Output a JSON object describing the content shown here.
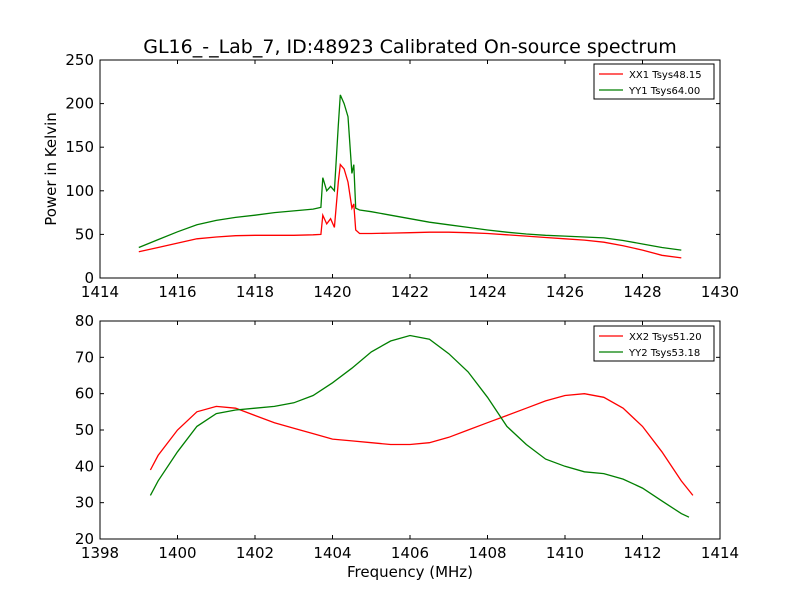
{
  "title": "GL16_-_Lab_7, ID:48923 Calibrated On-source spectrum",
  "colors": {
    "red": "#ff0000",
    "green": "#007f00"
  },
  "chart_data": [
    {
      "type": "line",
      "title": "GL16_-_Lab_7, ID:48923 Calibrated On-source spectrum",
      "xlabel": "",
      "ylabel": "Power in Kelvin",
      "xlim": [
        1414,
        1430
      ],
      "ylim": [
        0,
        250
      ],
      "xticks": [
        1414,
        1416,
        1418,
        1420,
        1422,
        1424,
        1426,
        1428,
        1430
      ],
      "yticks": [
        0,
        50,
        100,
        150,
        200,
        250
      ],
      "legend_position": "top-right",
      "grid": false,
      "series": [
        {
          "name": "XX1 Tsys48.15",
          "color": "#ff0000",
          "x": [
            1415.0,
            1415.5,
            1416.0,
            1416.5,
            1417.0,
            1417.5,
            1418.0,
            1418.5,
            1419.0,
            1419.5,
            1419.7,
            1419.75,
            1419.85,
            1419.95,
            1420.05,
            1420.15,
            1420.2,
            1420.3,
            1420.4,
            1420.5,
            1420.55,
            1420.6,
            1420.7,
            1421.0,
            1421.5,
            1422.0,
            1422.5,
            1423.0,
            1423.5,
            1424.0,
            1424.5,
            1425.0,
            1425.5,
            1426.0,
            1426.5,
            1427.0,
            1427.5,
            1428.0,
            1428.5,
            1429.0
          ],
          "y": [
            30,
            35,
            40,
            45,
            47,
            48.5,
            49,
            49,
            49,
            49.5,
            50,
            72,
            62,
            68,
            58,
            110,
            130,
            125,
            110,
            80,
            85,
            55,
            51,
            51,
            51.5,
            52,
            52.5,
            52.5,
            52,
            51,
            49.5,
            48,
            46.5,
            45,
            43.5,
            41,
            37,
            32,
            26,
            23
          ]
        },
        {
          "name": "YY1 Tsys64.00",
          "color": "#007f00",
          "x": [
            1415.0,
            1415.5,
            1416.0,
            1416.5,
            1417.0,
            1417.5,
            1418.0,
            1418.5,
            1419.0,
            1419.5,
            1419.7,
            1419.75,
            1419.85,
            1419.95,
            1420.05,
            1420.15,
            1420.2,
            1420.3,
            1420.4,
            1420.5,
            1420.55,
            1420.6,
            1420.7,
            1421.0,
            1421.5,
            1422.0,
            1422.5,
            1423.0,
            1423.5,
            1424.0,
            1424.5,
            1425.0,
            1425.5,
            1426.0,
            1426.5,
            1427.0,
            1427.5,
            1428.0,
            1428.5,
            1429.0
          ],
          "y": [
            35,
            44,
            53,
            61,
            66,
            69.5,
            72,
            75,
            77,
            79,
            81,
            115,
            100,
            105,
            100,
            175,
            210,
            200,
            185,
            120,
            130,
            80,
            78,
            76,
            72,
            68,
            64,
            61,
            58,
            55,
            52.5,
            50.5,
            49,
            48,
            47,
            46,
            43,
            39,
            35,
            32
          ]
        }
      ]
    },
    {
      "type": "line",
      "title": "",
      "xlabel": "Frequency (MHz)",
      "ylabel": "",
      "xlim": [
        1398,
        1414
      ],
      "ylim": [
        20,
        80
      ],
      "xticks": [
        1398,
        1400,
        1402,
        1404,
        1406,
        1408,
        1410,
        1412,
        1414
      ],
      "yticks": [
        20,
        30,
        40,
        50,
        60,
        70,
        80
      ],
      "legend_position": "top-right",
      "grid": false,
      "series": [
        {
          "name": "XX2 Tsys51.20",
          "color": "#ff0000",
          "x": [
            1399.3,
            1399.5,
            1400.0,
            1400.5,
            1401.0,
            1401.5,
            1402.0,
            1402.5,
            1403.0,
            1403.5,
            1404.0,
            1404.5,
            1405.0,
            1405.5,
            1406.0,
            1406.5,
            1407.0,
            1407.5,
            1408.0,
            1408.5,
            1409.0,
            1409.5,
            1410.0,
            1410.5,
            1411.0,
            1411.5,
            1412.0,
            1412.5,
            1413.0,
            1413.3
          ],
          "y": [
            39,
            43,
            50,
            55,
            56.5,
            56,
            54,
            52,
            50.5,
            49,
            47.5,
            47,
            46.5,
            46,
            46,
            46.5,
            48,
            50,
            52,
            54,
            56,
            58,
            59.5,
            60,
            59,
            56,
            51,
            44,
            36,
            32
          ]
        },
        {
          "name": "YY2 Tsys53.18",
          "color": "#007f00",
          "x": [
            1399.3,
            1399.5,
            1400.0,
            1400.5,
            1401.0,
            1401.5,
            1402.0,
            1402.5,
            1403.0,
            1403.5,
            1404.0,
            1404.5,
            1405.0,
            1405.5,
            1406.0,
            1406.5,
            1407.0,
            1407.5,
            1408.0,
            1408.5,
            1409.0,
            1409.5,
            1410.0,
            1410.5,
            1411.0,
            1411.5,
            1412.0,
            1412.5,
            1413.0,
            1413.2
          ],
          "y": [
            32,
            36,
            44,
            51,
            54.5,
            55.5,
            56,
            56.5,
            57.5,
            59.5,
            63,
            67,
            71.5,
            74.5,
            76,
            75,
            71,
            66,
            59,
            51,
            46,
            42,
            40,
            38.5,
            38,
            36.5,
            34,
            30.5,
            27,
            26
          ]
        }
      ]
    }
  ]
}
